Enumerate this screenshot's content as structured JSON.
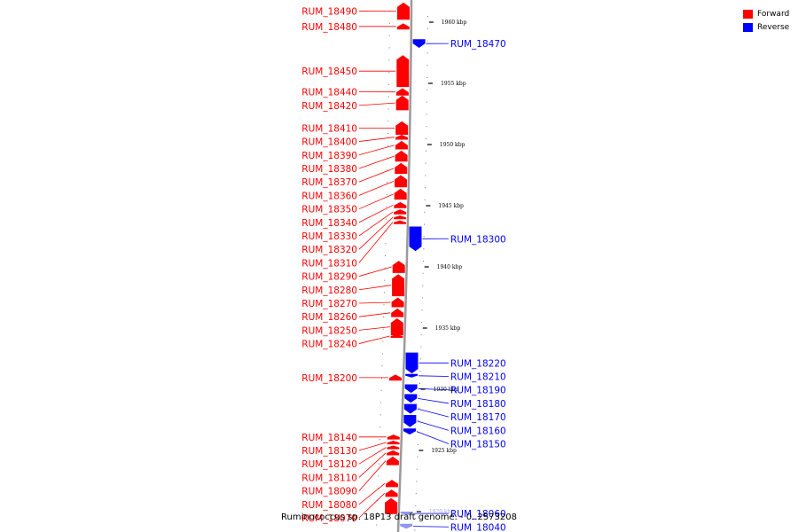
{
  "caption": "Ruminococcus sp. 18P13 draft genome. - 0..2573208",
  "legend": [
    {
      "label": "Forward",
      "color": "#ff0000"
    },
    {
      "label": "Reverse",
      "color": "#0000ff"
    }
  ],
  "colors": {
    "forward": "#ff0000",
    "reverse": "#0000ff",
    "reverse_faded": "#8f95f0",
    "backbone": "#9a9a9a",
    "tick": "#000000"
  },
  "ticks": [
    {
      "kbp": 1960,
      "label": "1960 kbp"
    },
    {
      "kbp": 1955,
      "label": "1955 kbp"
    },
    {
      "kbp": 1950,
      "label": "1950 kbp"
    },
    {
      "kbp": 1945,
      "label": "1945 kbp"
    },
    {
      "kbp": 1940,
      "label": "1940 kbp"
    },
    {
      "kbp": 1935,
      "label": "1935 kbp"
    },
    {
      "kbp": 1930,
      "label": "1930 kbp"
    },
    {
      "kbp": 1925,
      "label": "1925 kbp"
    },
    {
      "kbp": 1920,
      "label": "1920 kbp"
    }
  ],
  "genes": [
    {
      "id": "RUM_18490",
      "strand": "forward",
      "start_kbp": 1960.2,
      "end_kbp": 1961.6,
      "label": true
    },
    {
      "id": "RUM_18480",
      "strand": "forward",
      "start_kbp": 1959.4,
      "end_kbp": 1959.9,
      "label": true
    },
    {
      "id": "RUM_18470",
      "strand": "reverse",
      "start_kbp": 1957.9,
      "end_kbp": 1958.6,
      "label": true
    },
    {
      "id": "RUM_18450",
      "strand": "forward",
      "start_kbp": 1954.7,
      "end_kbp": 1957.3,
      "label": true
    },
    {
      "id": "RUM_18440",
      "strand": "forward",
      "start_kbp": 1954.0,
      "end_kbp": 1954.6,
      "label": true
    },
    {
      "id": "RUM_18420",
      "strand": "forward",
      "start_kbp": 1952.8,
      "end_kbp": 1954.0,
      "label": true
    },
    {
      "id": "RUM_18410",
      "strand": "forward",
      "start_kbp": 1950.8,
      "end_kbp": 1951.9,
      "label": true
    },
    {
      "id": "RUM_18400",
      "strand": "forward",
      "start_kbp": 1950.4,
      "end_kbp": 1950.8,
      "label": true
    },
    {
      "id": "RUM_18390",
      "strand": "forward",
      "start_kbp": 1949.6,
      "end_kbp": 1950.3,
      "label": true
    },
    {
      "id": "RUM_18380",
      "strand": "forward",
      "start_kbp": 1948.6,
      "end_kbp": 1949.5,
      "label": true
    },
    {
      "id": "RUM_18370",
      "strand": "forward",
      "start_kbp": 1947.6,
      "end_kbp": 1948.5,
      "label": true
    },
    {
      "id": "RUM_18360",
      "strand": "forward",
      "start_kbp": 1946.5,
      "end_kbp": 1947.5,
      "label": true
    },
    {
      "id": "RUM_18350",
      "strand": "forward",
      "start_kbp": 1945.5,
      "end_kbp": 1946.4,
      "label": true
    },
    {
      "id": "RUM_18340",
      "strand": "forward",
      "start_kbp": 1944.8,
      "end_kbp": 1945.3,
      "label": true
    },
    {
      "id": "RUM_18330",
      "strand": "forward",
      "start_kbp": 1944.3,
      "end_kbp": 1944.7,
      "label": true
    },
    {
      "id": "RUM_18320",
      "strand": "forward",
      "start_kbp": 1943.9,
      "end_kbp": 1944.2,
      "label": true
    },
    {
      "id": "RUM_18310",
      "strand": "forward",
      "start_kbp": 1943.5,
      "end_kbp": 1943.8,
      "label": true
    },
    {
      "id": "RUM_18300",
      "strand": "reverse",
      "start_kbp": 1941.3,
      "end_kbp": 1943.3,
      "label": true
    },
    {
      "id": "RUM_18290",
      "strand": "forward",
      "start_kbp": 1939.5,
      "end_kbp": 1940.5,
      "label": true
    },
    {
      "id": "RUM_18280",
      "strand": "forward",
      "start_kbp": 1937.6,
      "end_kbp": 1939.4,
      "label": true
    },
    {
      "id": "RUM_18270",
      "strand": "forward",
      "start_kbp": 1936.7,
      "end_kbp": 1937.5,
      "label": true
    },
    {
      "id": "RUM_18260",
      "strand": "forward",
      "start_kbp": 1935.9,
      "end_kbp": 1936.6,
      "label": true
    },
    {
      "id": "RUM_18250",
      "strand": "forward",
      "start_kbp": 1934.4,
      "end_kbp": 1935.8,
      "label": true
    },
    {
      "id": "RUM_18240",
      "strand": "forward",
      "start_kbp": 1934.3,
      "end_kbp": 1934.4,
      "label": true
    },
    {
      "id": "RUM_18220",
      "strand": "reverse",
      "start_kbp": 1931.3,
      "end_kbp": 1933.0,
      "label": true
    },
    {
      "id": "RUM_18210",
      "strand": "reverse",
      "start_kbp": 1931.0,
      "end_kbp": 1931.2,
      "label": true
    },
    {
      "id": "RUM_18200",
      "strand": "forward",
      "start_kbp": 1930.7,
      "end_kbp": 1931.2,
      "label": true
    },
    {
      "id": "RUM_18190",
      "strand": "reverse",
      "start_kbp": 1929.7,
      "end_kbp": 1930.4,
      "label": true
    },
    {
      "id": "RUM_18180",
      "strand": "reverse",
      "start_kbp": 1928.9,
      "end_kbp": 1929.6,
      "label": true
    },
    {
      "id": "RUM_18170",
      "strand": "reverse",
      "start_kbp": 1928.0,
      "end_kbp": 1928.8,
      "label": true
    },
    {
      "id": "RUM_18160",
      "strand": "reverse",
      "start_kbp": 1926.9,
      "end_kbp": 1927.9,
      "label": true
    },
    {
      "id": "RUM_18150",
      "strand": "reverse",
      "start_kbp": 1926.3,
      "end_kbp": 1926.8,
      "label": true
    },
    {
      "id": "RUM_18140",
      "strand": "forward",
      "start_kbp": 1925.9,
      "end_kbp": 1926.3,
      "label": true
    },
    {
      "id": "RUM_18130",
      "strand": "forward",
      "start_kbp": 1925.5,
      "end_kbp": 1925.8,
      "label": true
    },
    {
      "id": "RUM_18120",
      "strand": "forward",
      "start_kbp": 1925.1,
      "end_kbp": 1925.4,
      "label": true
    },
    {
      "id": "RUM_18110",
      "strand": "forward",
      "start_kbp": 1924.6,
      "end_kbp": 1925.0,
      "label": true
    },
    {
      "id": "RUM_18090",
      "strand": "forward",
      "start_kbp": 1923.8,
      "end_kbp": 1924.5,
      "label": true
    },
    {
      "id": "RUM_18080",
      "strand": "forward",
      "start_kbp": 1922.0,
      "end_kbp": 1922.6,
      "label": true
    },
    {
      "id": "RUM_18070",
      "strand": "forward",
      "start_kbp": 1921.2,
      "end_kbp": 1921.8,
      "label": true
    },
    {
      "id": "RUM_18060",
      "strand": "reverse",
      "start_kbp": 1919.7,
      "end_kbp": 1920.0,
      "label": true
    },
    {
      "id": "RUM_18040",
      "strand": "reverse",
      "start_kbp": 1918.6,
      "end_kbp": 1919.0,
      "label": true
    },
    {
      "id": "fwd_unlabeled_1",
      "strand": "forward",
      "start_kbp": 1919.8,
      "end_kbp": 1921.1,
      "label": false
    }
  ]
}
